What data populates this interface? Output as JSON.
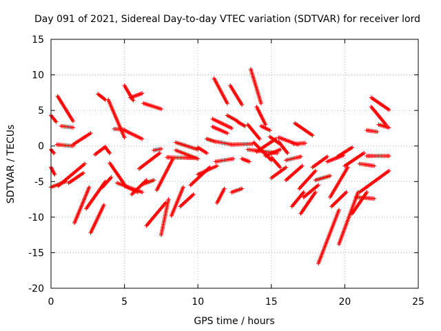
{
  "chart_data": {
    "type": "scatter",
    "title": "Day 091 of 2021, Sidereal Day-to-day VTEC variation (SDTVAR) for receiver lord",
    "xlabel": "GPS time / hours",
    "ylabel": "SDTVAR / TECUs",
    "xlim": [
      0,
      25
    ],
    "ylim": [
      -20,
      15
    ],
    "xticks": [
      0,
      5,
      10,
      15,
      20,
      25
    ],
    "yticks": [
      -20,
      -15,
      -10,
      -5,
      0,
      5,
      10,
      15
    ],
    "grid": true,
    "marker": "plus",
    "color": "#ff0000",
    "tracks": [
      {
        "x0": 0.0,
        "x1": 0.35,
        "y0": 4.3,
        "y1": 3.4
      },
      {
        "x0": 0.0,
        "x1": 0.2,
        "y0": -0.5,
        "y1": -1.0
      },
      {
        "x0": 0.0,
        "x1": 0.25,
        "y0": -3.0,
        "y1": -4.0
      },
      {
        "x0": 0.0,
        "x1": 1.0,
        "y0": -5.8,
        "y1": -5.0
      },
      {
        "x0": 0.45,
        "x1": 1.5,
        "y0": 7.0,
        "y1": 3.5
      },
      {
        "x0": 0.7,
        "x1": 1.5,
        "y0": 2.8,
        "y1": 2.6
      },
      {
        "x0": 0.4,
        "x1": 1.5,
        "y0": 0.2,
        "y1": 0.0
      },
      {
        "x0": 1.5,
        "x1": 2.7,
        "y0": 0.2,
        "y1": 1.8
      },
      {
        "x0": 0.5,
        "x1": 2.3,
        "y0": -5.6,
        "y1": -2.5
      },
      {
        "x0": 1.2,
        "x1": 2.2,
        "y0": -5.2,
        "y1": -3.8
      },
      {
        "x0": 1.6,
        "x1": 2.6,
        "y0": -10.8,
        "y1": -5.8
      },
      {
        "x0": 2.7,
        "x1": 3.6,
        "y0": -12.2,
        "y1": -8.3
      },
      {
        "x0": 2.4,
        "x1": 3.7,
        "y0": -8.8,
        "y1": -5.0
      },
      {
        "x0": 3.2,
        "x1": 3.7,
        "y0": 7.3,
        "y1": 6.5
      },
      {
        "x0": 3.5,
        "x1": 4.1,
        "y0": -5.8,
        "y1": -4.4
      },
      {
        "x0": 3.0,
        "x1": 3.7,
        "y0": -1.2,
        "y1": -0.1
      },
      {
        "x0": 3.7,
        "x1": 4.0,
        "y0": -0.2,
        "y1": -1.0
      },
      {
        "x0": 3.9,
        "x1": 5.0,
        "y0": 6.5,
        "y1": 1.2
      },
      {
        "x0": 4.3,
        "x1": 5.0,
        "y0": 2.4,
        "y1": 2.3
      },
      {
        "x0": 5.0,
        "x1": 6.2,
        "y0": 2.2,
        "y1": 1.0
      },
      {
        "x0": 4.0,
        "x1": 5.0,
        "y0": -2.4,
        "y1": -5.4
      },
      {
        "x0": 4.5,
        "x1": 6.2,
        "y0": -5.2,
        "y1": -6.5
      },
      {
        "x0": 5.0,
        "x1": 5.9,
        "y0": -5.6,
        "y1": -6.5
      },
      {
        "x0": 5.0,
        "x1": 5.6,
        "y0": 8.5,
        "y1": 6.4
      },
      {
        "x0": 5.4,
        "x1": 6.2,
        "y0": 6.8,
        "y1": 7.4
      },
      {
        "x0": 5.5,
        "x1": 6.5,
        "y0": -6.8,
        "y1": -4.8
      },
      {
        "x0": 6.0,
        "x1": 7.4,
        "y0": -3.2,
        "y1": -1.0
      },
      {
        "x0": 6.3,
        "x1": 7.5,
        "y0": 6.0,
        "y1": 5.2
      },
      {
        "x0": 6.2,
        "x1": 7.0,
        "y0": -5.4,
        "y1": -4.8
      },
      {
        "x0": 6.5,
        "x1": 7.8,
        "y0": -11.2,
        "y1": -8.0
      },
      {
        "x0": 7.0,
        "x1": 7.5,
        "y0": -0.6,
        "y1": -0.4
      },
      {
        "x0": 7.5,
        "x1": 8.0,
        "y0": -12.5,
        "y1": -7.5
      },
      {
        "x0": 7.2,
        "x1": 8.3,
        "y0": -6.2,
        "y1": -1.8
      },
      {
        "x0": 8.2,
        "x1": 9.0,
        "y0": -9.8,
        "y1": -5.8
      },
      {
        "x0": 8.8,
        "x1": 9.7,
        "y0": -8.5,
        "y1": -6.8
      },
      {
        "x0": 8.5,
        "x1": 10.0,
        "y0": -0.6,
        "y1": -1.8
      },
      {
        "x0": 8.5,
        "x1": 10.0,
        "y0": 0.5,
        "y1": -0.5
      },
      {
        "x0": 7.9,
        "x1": 9.9,
        "y0": -1.6,
        "y1": -1.7
      },
      {
        "x0": 9.5,
        "x1": 10.8,
        "y0": -5.5,
        "y1": -3.0
      },
      {
        "x0": 10.0,
        "x1": 11.3,
        "y0": -4.0,
        "y1": -2.8
      },
      {
        "x0": 10.0,
        "x1": 10.6,
        "y0": -0.2,
        "y1": -1.0
      },
      {
        "x0": 10.6,
        "x1": 11.2,
        "y0": 1.0,
        "y1": 0.6
      },
      {
        "x0": 11.1,
        "x1": 12.0,
        "y0": 9.5,
        "y1": 6.0
      },
      {
        "x0": 11.0,
        "x1": 12.3,
        "y0": 3.8,
        "y1": 2.5
      },
      {
        "x0": 11.0,
        "x1": 12.0,
        "y0": 2.7,
        "y1": 1.8
      },
      {
        "x0": 11.2,
        "x1": 12.4,
        "y0": -2.2,
        "y1": -1.8
      },
      {
        "x0": 11.3,
        "x1": 11.8,
        "y0": -8.0,
        "y1": -6.0
      },
      {
        "x0": 11.3,
        "x1": 12.3,
        "y0": 0.6,
        "y1": 0.2
      },
      {
        "x0": 12.0,
        "x1": 12.7,
        "y0": 4.3,
        "y1": 3.5
      },
      {
        "x0": 12.2,
        "x1": 13.0,
        "y0": 8.5,
        "y1": 5.8
      },
      {
        "x0": 12.7,
        "x1": 13.2,
        "y0": 3.4,
        "y1": 2.8
      },
      {
        "x0": 12.3,
        "x1": 13.7,
        "y0": 0.2,
        "y1": 0.3
      },
      {
        "x0": 12.3,
        "x1": 13.0,
        "y0": -6.5,
        "y1": -6.0
      },
      {
        "x0": 13.0,
        "x1": 13.5,
        "y0": -1.8,
        "y1": -2.2
      },
      {
        "x0": 13.6,
        "x1": 14.3,
        "y0": 10.8,
        "y1": 6.0
      },
      {
        "x0": 14.0,
        "x1": 14.6,
        "y0": 5.5,
        "y1": 3.0
      },
      {
        "x0": 13.4,
        "x1": 14.2,
        "y0": 3.0,
        "y1": 1.0
      },
      {
        "x0": 14.3,
        "x1": 14.9,
        "y0": 2.8,
        "y1": 2.2
      },
      {
        "x0": 13.4,
        "x1": 15.4,
        "y0": -0.5,
        "y1": -1.0
      },
      {
        "x0": 13.8,
        "x1": 15.0,
        "y0": 0.5,
        "y1": -2.0
      },
      {
        "x0": 14.6,
        "x1": 15.6,
        "y0": -1.4,
        "y1": -0.5
      },
      {
        "x0": 14.0,
        "x1": 15.3,
        "y0": -0.8,
        "y1": 1.0
      },
      {
        "x0": 14.9,
        "x1": 15.5,
        "y0": 1.3,
        "y1": 0.4
      },
      {
        "x0": 15.0,
        "x1": 15.6,
        "y0": -1.6,
        "y1": -3.0
      },
      {
        "x0": 15.5,
        "x1": 16.1,
        "y0": 0.6,
        "y1": -1.0
      },
      {
        "x0": 15.5,
        "x1": 16.8,
        "y0": 1.2,
        "y1": 0.2
      },
      {
        "x0": 15.0,
        "x1": 16.0,
        "y0": -4.5,
        "y1": -3.0
      },
      {
        "x0": 16.0,
        "x1": 17.0,
        "y0": -2.0,
        "y1": -1.5
      },
      {
        "x0": 16.5,
        "x1": 17.3,
        "y0": 0.3,
        "y1": 0.4
      },
      {
        "x0": 16.6,
        "x1": 17.8,
        "y0": 3.2,
        "y1": 1.5
      },
      {
        "x0": 16.0,
        "x1": 17.1,
        "y0": -4.8,
        "y1": -2.8
      },
      {
        "x0": 16.4,
        "x1": 17.2,
        "y0": -8.5,
        "y1": -6.5
      },
      {
        "x0": 16.9,
        "x1": 18.0,
        "y0": -6.0,
        "y1": -3.5
      },
      {
        "x0": 17.0,
        "x1": 18.0,
        "y0": -9.5,
        "y1": -6.5
      },
      {
        "x0": 17.2,
        "x1": 18.2,
        "y0": -7.2,
        "y1": -5.5
      },
      {
        "x0": 18.0,
        "x1": 19.0,
        "y0": -4.8,
        "y1": -4.2
      },
      {
        "x0": 17.8,
        "x1": 18.8,
        "y0": -3.0,
        "y1": -1.5
      },
      {
        "x0": 18.2,
        "x1": 19.6,
        "y0": -16.5,
        "y1": -9.0
      },
      {
        "x0": 18.8,
        "x1": 19.9,
        "y0": -2.2,
        "y1": -1.3
      },
      {
        "x0": 19.0,
        "x1": 20.2,
        "y0": -7.2,
        "y1": -3.0
      },
      {
        "x0": 19.1,
        "x1": 20.1,
        "y0": -8.5,
        "y1": -6.5
      },
      {
        "x0": 19.6,
        "x1": 20.9,
        "y0": -13.8,
        "y1": -6.5
      },
      {
        "x0": 20.0,
        "x1": 21.3,
        "y0": -2.8,
        "y1": -1.0
      },
      {
        "x0": 19.5,
        "x1": 20.5,
        "y0": -1.5,
        "y1": -0.2
      },
      {
        "x0": 20.5,
        "x1": 21.5,
        "y0": -9.5,
        "y1": -6.5
      },
      {
        "x0": 20.8,
        "x1": 22.0,
        "y0": -7.2,
        "y1": -7.4
      },
      {
        "x0": 21.0,
        "x1": 23.0,
        "y0": -6.5,
        "y1": -3.5
      },
      {
        "x0": 21.0,
        "x1": 22.0,
        "y0": -2.5,
        "y1": -2.8
      },
      {
        "x0": 21.5,
        "x1": 22.2,
        "y0": 2.2,
        "y1": 2.0
      },
      {
        "x0": 21.8,
        "x1": 23.0,
        "y0": 6.8,
        "y1": 5.1
      },
      {
        "x0": 21.8,
        "x1": 22.8,
        "y0": 5.5,
        "y1": 3.0
      },
      {
        "x0": 22.3,
        "x1": 23.0,
        "y0": 3.0,
        "y1": 2.6
      },
      {
        "x0": 21.5,
        "x1": 23.0,
        "y0": -1.4,
        "y1": -1.4
      }
    ]
  }
}
